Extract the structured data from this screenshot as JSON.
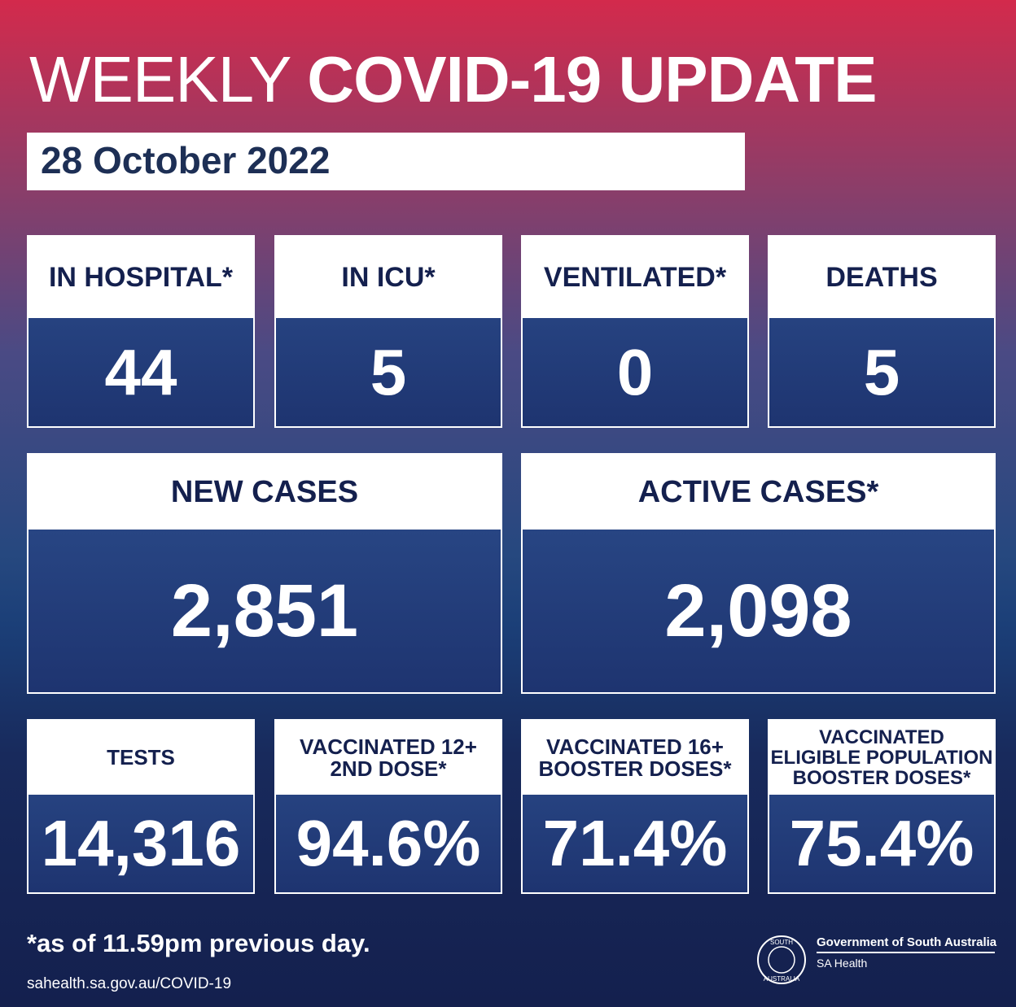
{
  "header": {
    "title_light": "WEEKLY",
    "title_bold": "COVID-19 UPDATE",
    "date": "28 October 2022"
  },
  "cards": [
    {
      "label": [
        "IN HOSPITAL*"
      ],
      "value": "44"
    },
    {
      "label": [
        "IN ICU*"
      ],
      "value": "5"
    },
    {
      "label": [
        "VENTILATED*"
      ],
      "value": "0"
    },
    {
      "label": [
        "DEATHS"
      ],
      "value": "5"
    },
    {
      "label": [
        "NEW CASES"
      ],
      "value": "2,851"
    },
    {
      "label": [
        "ACTIVE CASES*"
      ],
      "value": "2,098"
    },
    {
      "label": [
        "TESTS"
      ],
      "value": "14,316"
    },
    {
      "label": [
        "VACCINATED 12+",
        "2ND DOSE*"
      ],
      "value": "94.6%"
    },
    {
      "label": [
        "VACCINATED 16+",
        "BOOSTER DOSES*"
      ],
      "value": "71.4%"
    },
    {
      "label": [
        "VACCINATED",
        "ELIGIBLE POPULATION",
        "BOOSTER DOSES*"
      ],
      "value": "75.4%"
    }
  ],
  "footer": {
    "note": "*as of 11.59pm previous day.",
    "url": "sahealth.sa.gov.au/COVID-19",
    "seal": [
      "SOUTH",
      "AUSTRALIA"
    ],
    "gov": "Government of South Australia",
    "dept": "SA Health"
  }
}
